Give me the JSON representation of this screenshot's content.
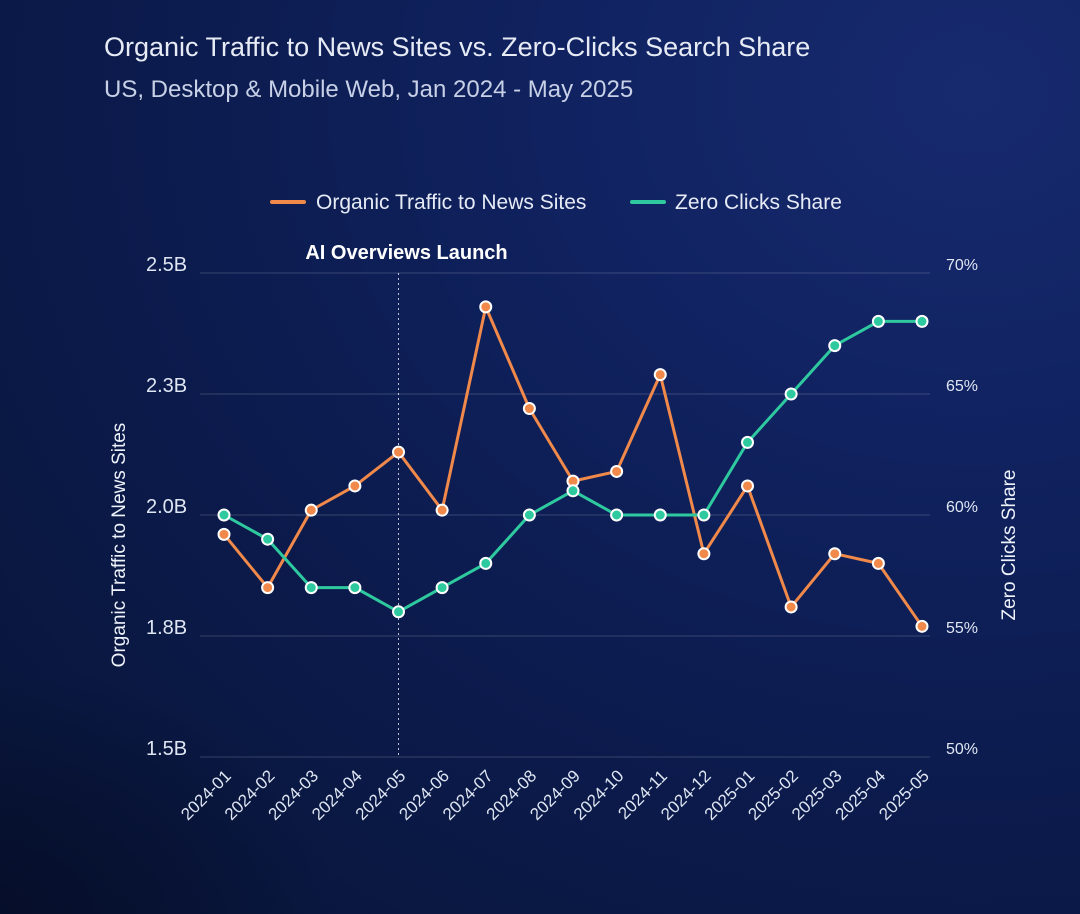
{
  "chart_data": {
    "type": "line",
    "title": "Organic Traffic to News Sites vs. Zero-Clicks Search Share",
    "subtitle": "US, Desktop & Mobile Web, Jan 2024 - May 2025",
    "categories": [
      "2024-01",
      "2024-02",
      "2024-03",
      "2024-04",
      "2024-05",
      "2024-06",
      "2024-07",
      "2024-08",
      "2024-09",
      "2024-10",
      "2024-11",
      "2024-12",
      "2025-01",
      "2025-02",
      "2025-03",
      "2025-04",
      "2025-05"
    ],
    "y_left": {
      "label": "Organic Traffic to News Sites",
      "range": [
        1.5,
        2.5
      ],
      "unit": "B",
      "ticks": [
        1.5,
        1.75,
        2.0,
        2.25,
        2.5
      ],
      "tick_labels": [
        "1.5B",
        "1.8B",
        "2.0B",
        "2.3B",
        "2.5B"
      ]
    },
    "y_right": {
      "label": "Zero Clicks Share",
      "range": [
        50,
        70
      ],
      "unit": "%",
      "ticks": [
        50,
        55,
        60,
        65,
        70
      ],
      "tick_labels": [
        "50%",
        "55%",
        "60%",
        "65%",
        "70%"
      ]
    },
    "series": [
      {
        "name": "Organic Traffic to News Sites",
        "axis": "left",
        "color": "#f0894a",
        "values": [
          1.96,
          1.85,
          2.01,
          2.06,
          2.13,
          2.01,
          2.43,
          2.22,
          2.07,
          2.09,
          2.29,
          1.92,
          2.06,
          1.81,
          1.92,
          1.9,
          1.77
        ]
      },
      {
        "name": "Zero Clicks Share",
        "axis": "right",
        "color": "#2fc9a0",
        "values": [
          60,
          59,
          57,
          57,
          56,
          57,
          58,
          60,
          61,
          60,
          60,
          60,
          63,
          65,
          67,
          68,
          68
        ]
      }
    ],
    "annotations": [
      {
        "text": "AI Overviews Launch",
        "x": "2024-05"
      }
    ],
    "grid": true,
    "legend_position": "top-center"
  }
}
